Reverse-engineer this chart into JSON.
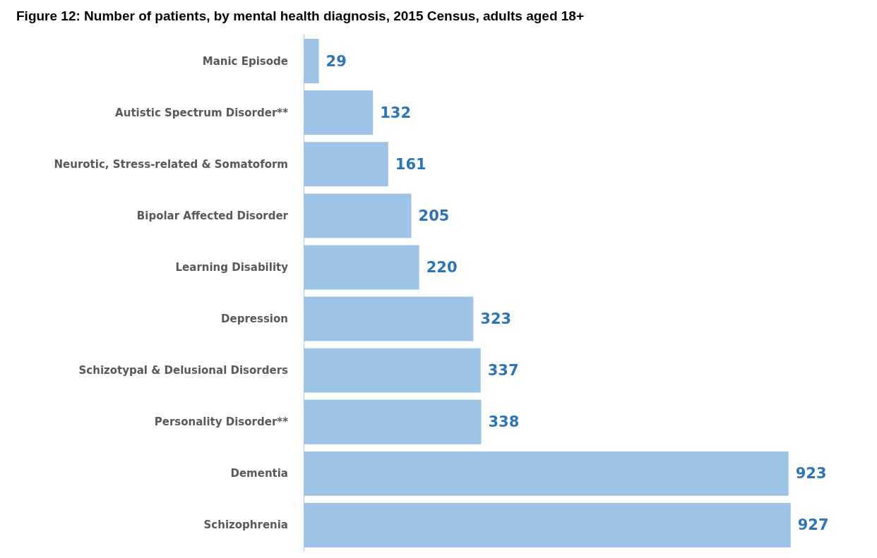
{
  "chart_data": {
    "type": "bar",
    "orientation": "horizontal",
    "title": "Figure 12: Number of patients, by mental health diagnosis, 2015 Census, adults aged 18+",
    "categories": [
      "Manic Episode",
      "Autistic Spectrum Disorder**",
      "Neurotic, Stress-related & Somatoform",
      "Bipolar Affected Disorder",
      "Learning Disability",
      "Depression",
      "Schizotypal & Delusional Disorders",
      "Personality Disorder**",
      "Dementia",
      "Schizophrenia"
    ],
    "values": [
      29,
      132,
      161,
      205,
      220,
      323,
      337,
      338,
      923,
      927
    ],
    "color": "#9dc3e6",
    "data_labels": true
  }
}
